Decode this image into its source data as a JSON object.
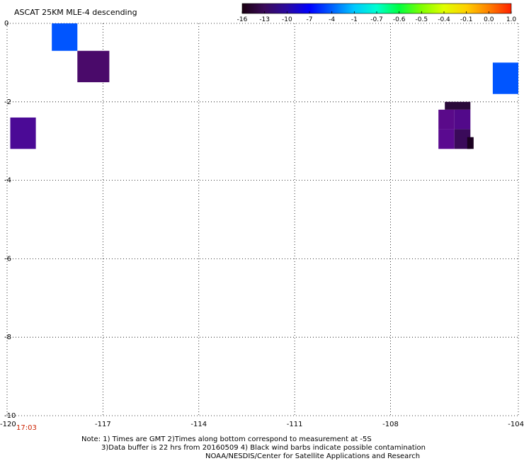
{
  "chart_data": {
    "type": "heatmap",
    "title": "ASCAT 25KM MLE-4 descending",
    "xlim": [
      -120,
      -104
    ],
    "ylim": [
      -10,
      0
    ],
    "x_ticks": [
      "-120",
      "-117",
      "-114",
      "-111",
      "-108",
      "-104"
    ],
    "y_ticks": [
      "0",
      "-2",
      "-4",
      "-6",
      "-8",
      "-10"
    ],
    "grid": true,
    "colorbar": {
      "labels": [
        "-16",
        "-13",
        "-10",
        "-7",
        "-4",
        "-1",
        "-0.7",
        "-0.6",
        "-0.5",
        "-0.4",
        "-0.1",
        "0.0",
        "1.0"
      ],
      "colors": [
        "#1a0010",
        "#3a0a5a",
        "#2a0aa0",
        "#0000ff",
        "#0060ff",
        "#00c8ff",
        "#00ffd0",
        "#00ff40",
        "#80ff00",
        "#e0ff00",
        "#ffd000",
        "#ff8000",
        "#ff2000"
      ]
    },
    "cells": [
      {
        "x0": -118.6,
        "x1": -117.8,
        "y0": 0.0,
        "y1": -0.7,
        "value": -4.5,
        "color": "#0055ff"
      },
      {
        "x0": -117.8,
        "x1": -116.8,
        "y0": -0.7,
        "y1": -1.5,
        "value": -13.5,
        "color": "#4a0a6a"
      },
      {
        "x0": -119.9,
        "x1": -119.1,
        "y0": -2.4,
        "y1": -3.2,
        "value": -11.5,
        "color": "#4b0a96"
      },
      {
        "x0": -104.8,
        "x1": -104.0,
        "y0": -1.0,
        "y1": -1.8,
        "value": -4.5,
        "color": "#0055ff"
      },
      {
        "x0": -106.3,
        "x1": -105.5,
        "y0": -2.0,
        "y1": -2.2,
        "value": -14.5,
        "color": "#2a0a3a"
      },
      {
        "x0": -106.5,
        "x1": -106.0,
        "y0": -2.2,
        "y1": -2.7,
        "value": -12.5,
        "color": "#5a0a8a"
      },
      {
        "x0": -106.0,
        "x1": -105.5,
        "y0": -2.2,
        "y1": -2.7,
        "value": -12.5,
        "color": "#52098a"
      },
      {
        "x0": -106.5,
        "x1": -106.0,
        "y0": -2.7,
        "y1": -3.2,
        "value": -12.0,
        "color": "#5a0a90"
      },
      {
        "x0": -106.0,
        "x1": -105.5,
        "y0": -2.7,
        "y1": -3.2,
        "value": -13.5,
        "color": "#3a0a5a"
      },
      {
        "x0": -105.6,
        "x1": -105.4,
        "y0": -2.9,
        "y1": -3.2,
        "value": -15.5,
        "color": "#1a0020"
      }
    ]
  },
  "footer": {
    "timestamp": "17:03",
    "note_line1": "Note: 1) Times are GMT 2)Times along bottom correspond to measurement at -5S",
    "note_line2": "3)Data buffer is 22 hrs from 20160509 4) Black wind barbs indicate possible contamination",
    "note_line3": "NOAA/NESDIS/Center for Satellite Applications and Research"
  }
}
